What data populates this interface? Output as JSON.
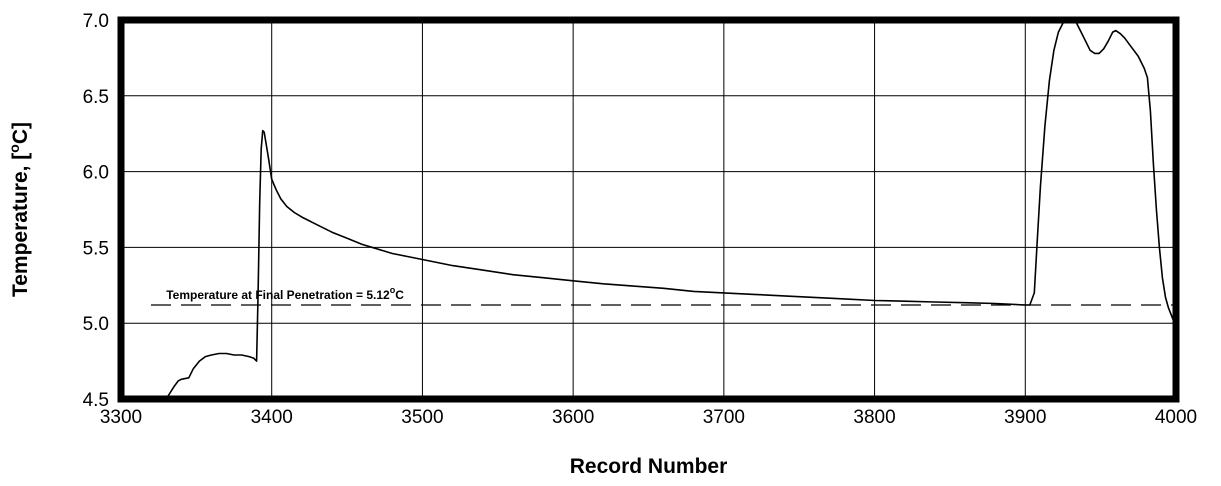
{
  "chart_data": {
    "type": "line",
    "xlabel": "Record Number",
    "ylabel_main": "Temperature, [",
    "ylabel_sup": "o",
    "ylabel_end": "C]",
    "xlim": [
      3300,
      4000
    ],
    "ylim": [
      4.5,
      7.0
    ],
    "xticks": [
      3300,
      3400,
      3500,
      3600,
      3700,
      3800,
      3900,
      4000
    ],
    "yticks": [
      "4.5",
      "5.0",
      "5.5",
      "6.0",
      "6.5",
      "7.0"
    ],
    "grid": true,
    "reference_line": {
      "y": 5.12,
      "style": "dashed",
      "label_main": "Temperature at Final Penetration = 5.12",
      "label_sup": "o",
      "label_end": "C"
    },
    "series": [
      {
        "x": [
          3330,
          3335,
          3338,
          3340,
          3345,
          3348,
          3352,
          3356,
          3360,
          3365,
          3370,
          3375,
          3380,
          3385,
          3388,
          3390,
          3391,
          3392,
          3393,
          3394,
          3395,
          3396,
          3398,
          3400,
          3403,
          3406,
          3410,
          3415,
          3420,
          3430,
          3440,
          3450,
          3460,
          3480,
          3500,
          3520,
          3540,
          3560,
          3580,
          3600,
          3620,
          3640,
          3660,
          3680,
          3700,
          3720,
          3740,
          3760,
          3780,
          3800,
          3820,
          3840,
          3860,
          3880,
          3900,
          3903,
          3906,
          3908,
          3910,
          3913,
          3916,
          3919,
          3922,
          3925,
          3928,
          3931,
          3934,
          3937,
          3940,
          3943,
          3946,
          3949,
          3952,
          3955,
          3958,
          3960,
          3963,
          3966,
          3969,
          3972,
          3975,
          3977,
          3979,
          3981,
          3983,
          3985,
          3987,
          3989,
          3991,
          3993,
          3995,
          3997,
          3999,
          4000
        ],
        "y": [
          4.5,
          4.58,
          4.62,
          4.63,
          4.64,
          4.7,
          4.75,
          4.78,
          4.79,
          4.8,
          4.8,
          4.79,
          4.79,
          4.78,
          4.77,
          4.75,
          5.2,
          5.8,
          6.15,
          6.27,
          6.26,
          6.2,
          6.08,
          5.95,
          5.88,
          5.82,
          5.77,
          5.73,
          5.7,
          5.65,
          5.6,
          5.56,
          5.52,
          5.46,
          5.42,
          5.38,
          5.35,
          5.32,
          5.3,
          5.28,
          5.26,
          5.245,
          5.23,
          5.21,
          5.2,
          5.19,
          5.18,
          5.17,
          5.16,
          5.15,
          5.145,
          5.14,
          5.135,
          5.13,
          5.12,
          5.12,
          5.2,
          5.55,
          5.9,
          6.3,
          6.6,
          6.8,
          6.92,
          6.98,
          7.0,
          7.0,
          6.98,
          6.92,
          6.86,
          6.8,
          6.78,
          6.78,
          6.81,
          6.86,
          6.92,
          6.93,
          6.91,
          6.88,
          6.84,
          6.8,
          6.76,
          6.72,
          6.68,
          6.62,
          6.4,
          6.05,
          5.75,
          5.5,
          5.3,
          5.17,
          5.1,
          5.05,
          5.0,
          4.97
        ]
      }
    ]
  }
}
